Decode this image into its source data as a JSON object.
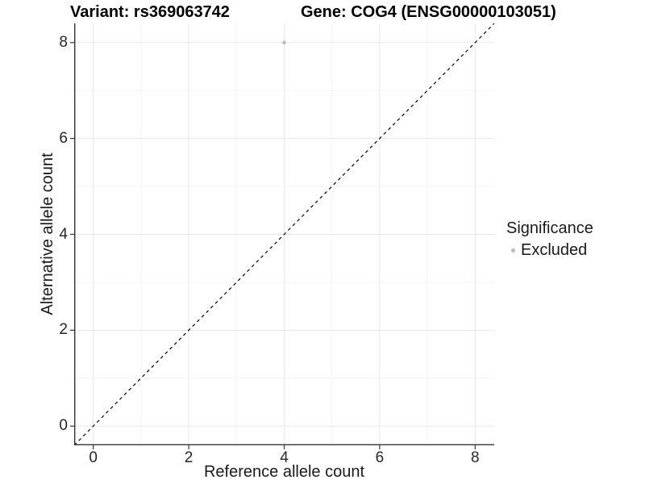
{
  "chart_data": {
    "type": "scatter",
    "title_left": "Variant: rs369063742",
    "title_right": "Gene: COG4 (ENSG00000103051)",
    "xlabel": "Reference allele count",
    "ylabel": "Alternative allele count",
    "xlim": [
      -0.4,
      8.4
    ],
    "ylim": [
      -0.4,
      8.4
    ],
    "x_ticks": [
      0,
      2,
      4,
      6,
      8
    ],
    "y_ticks": [
      0,
      2,
      4,
      6,
      8
    ],
    "x_minor_ticks": [
      1,
      3,
      5,
      7
    ],
    "y_minor_ticks": [
      1,
      3,
      5,
      7
    ],
    "grid": true,
    "reference_line": {
      "style": "dashed",
      "from": [
        -0.4,
        -0.4
      ],
      "to": [
        8.4,
        8.4
      ],
      "color": "#000000",
      "meaning": "identity line y = x"
    },
    "series": [
      {
        "name": "Excluded",
        "color": "#bdbdbd",
        "points": [
          [
            4,
            8
          ]
        ]
      }
    ],
    "legend": {
      "title": "Significance",
      "position": "right",
      "items": [
        {
          "label": "Excluded",
          "color": "#bdbdbd"
        }
      ]
    },
    "colors": {
      "axis_line": "#333333",
      "tick_mark": "#333333",
      "grid_major": "#e8e8e8",
      "grid_minor": "#f3f3f3",
      "tick_label": "#262626",
      "background": "#ffffff"
    }
  }
}
